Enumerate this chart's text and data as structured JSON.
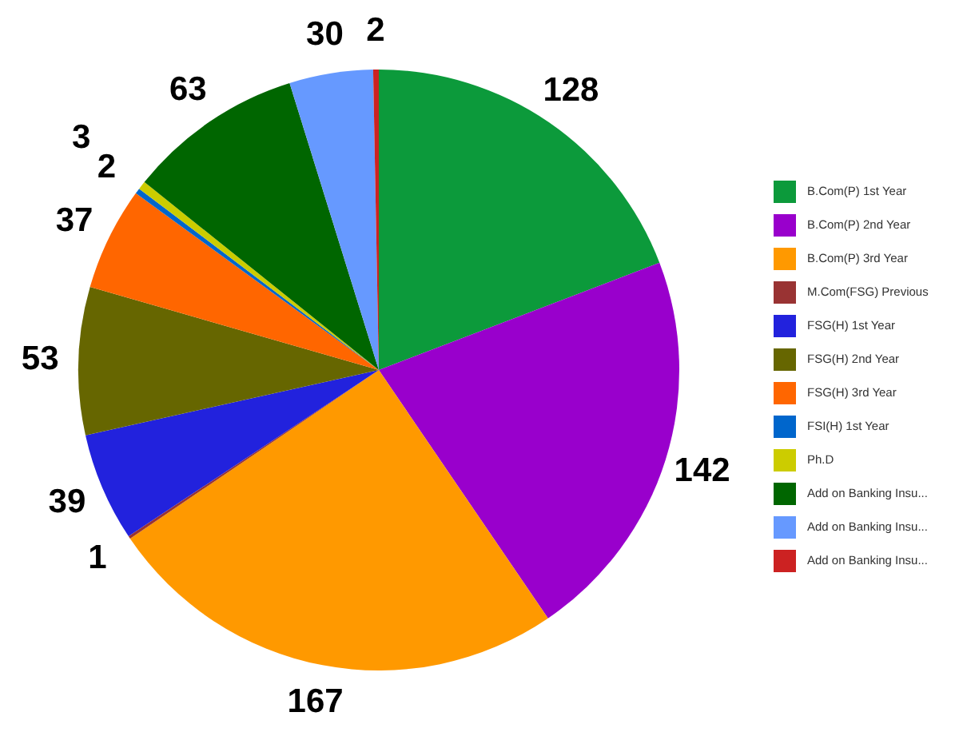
{
  "chart_data": {
    "type": "pie",
    "categories": [
      "B.Com(P) 1st Year",
      "B.Com(P) 2nd Year",
      "B.Com(P) 3rd Year",
      "M.Com(FSG) Previous",
      "FSG(H) 1st Year",
      "FSG(H) 2nd Year",
      "FSG(H) 3rd Year",
      "FSI(H) 1st Year",
      "Ph.D",
      "Add on Banking Insu...",
      "Add on Banking Insu...",
      "Add on Banking Insu..."
    ],
    "values": [
      128,
      142,
      167,
      1,
      39,
      53,
      37,
      2,
      3,
      63,
      30,
      2
    ],
    "colors": [
      "#0c9a3b",
      "#9900cc",
      "#ff9900",
      "#993333",
      "#2222dd",
      "#666600",
      "#ff6600",
      "#0066cc",
      "#cccc00",
      "#006600",
      "#6699ff",
      "#cc2222"
    ],
    "data_labels": true,
    "legend": "right"
  }
}
